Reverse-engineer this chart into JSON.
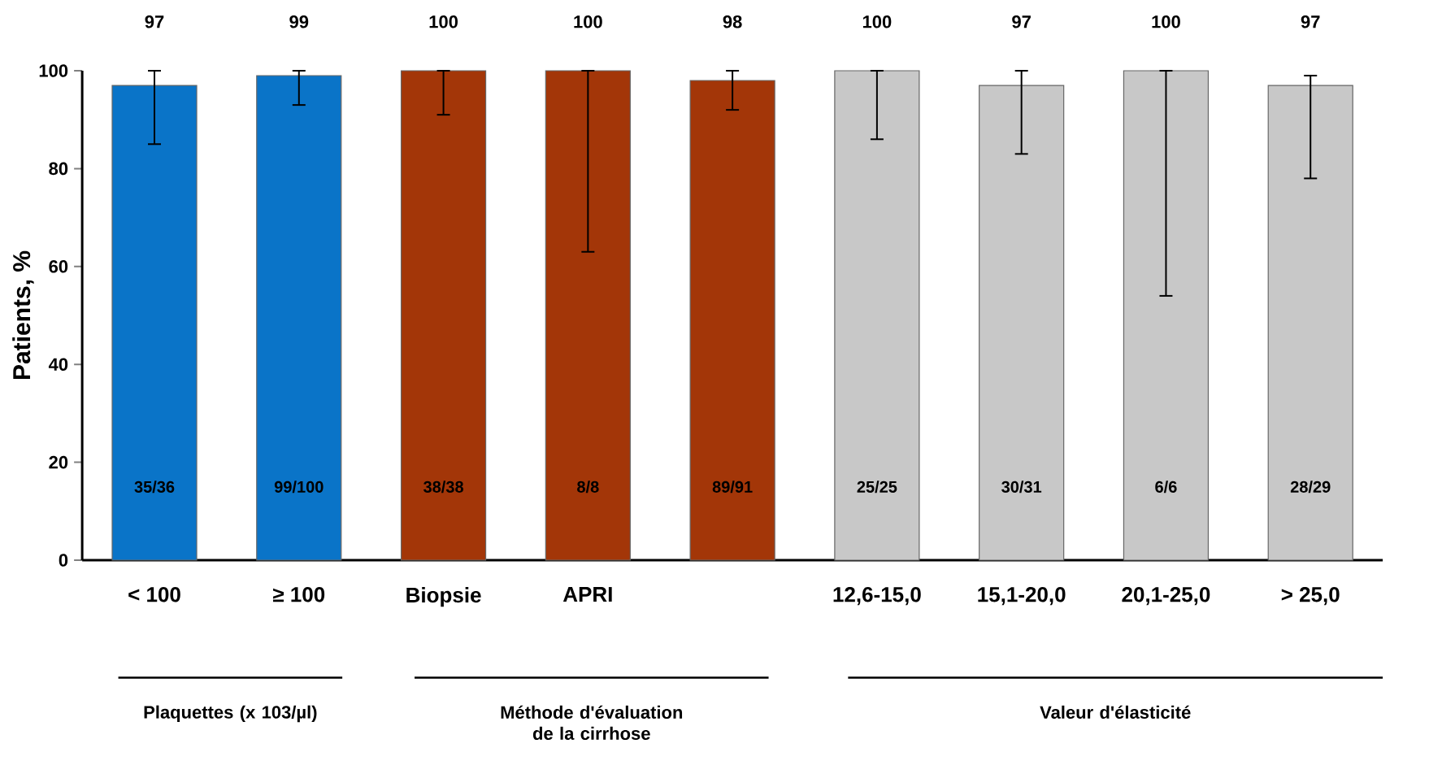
{
  "chart_data": {
    "type": "bar",
    "ylabel": "Patients, %",
    "categories": [
      "< 100",
      "≥ 100",
      "Biopsie",
      "APRI",
      null,
      "12,6-15,0",
      "15,1-20,0",
      "20,1-25,0",
      "> 25,0"
    ],
    "values": [
      97,
      99,
      100,
      100,
      98,
      100,
      97,
      100,
      97
    ],
    "colors": [
      "#0a74c8",
      "#0a74c8",
      "#a33608",
      "#a33608",
      "#a33608",
      "#c8c8c8",
      "#c8c8c8",
      "#c8c8c8",
      "#c8c8c8"
    ],
    "errors": [
      [
        85,
        100
      ],
      [
        93,
        100
      ],
      [
        91,
        100
      ],
      [
        63,
        100
      ],
      [
        92,
        100
      ],
      [
        86,
        100
      ],
      [
        83,
        100
      ],
      [
        54,
        100
      ],
      [
        78,
        99
      ]
    ],
    "data_labels": true,
    "ylim": [
      0,
      100
    ],
    "yticks": [
      0,
      20,
      40,
      60,
      80,
      100
    ],
    "grid": false,
    "annotations": [
      "35/36",
      "99/100",
      "38/38",
      "8/8",
      "89/91",
      "25/25",
      "30/31",
      "6/6",
      "28/29",
      "Plaquettes (x 103/µl)",
      "Méthode d'évaluation de la cirrhose",
      "Valeur d'élasticité"
    ]
  }
}
